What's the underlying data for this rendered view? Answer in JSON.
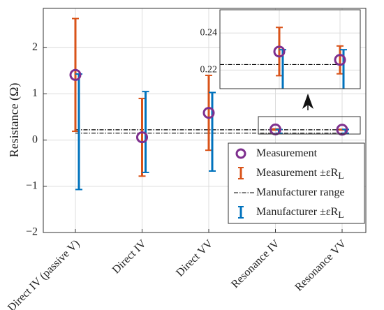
{
  "chart_data": {
    "type": "errorbar",
    "ylabel": "Resistance (Ω)",
    "categories": [
      "Direct IV (passive V)",
      "Direct IV",
      "Direct VV",
      "Resonance IV",
      "Resonance VV"
    ],
    "ylim": [
      -2,
      2.85
    ],
    "yticks": [
      {
        "value": -2,
        "label": "−2"
      },
      {
        "value": -1,
        "label": "−1"
      },
      0,
      1,
      2
    ],
    "grid": true,
    "series": [
      {
        "name": "Measurement",
        "color": "#7e2f8e",
        "values": [
          1.41,
          0.06,
          0.59,
          0.23,
          0.2255
        ]
      },
      {
        "name": "Measurement ±εR",
        "name_sub": "L",
        "color": "#d95319",
        "errors": [
          1.22,
          0.84,
          0.81,
          0.013,
          0.0075
        ]
      },
      {
        "name": "Manufacturer range",
        "color": "#000000",
        "range": [
          0.15,
          0.223
        ]
      },
      {
        "name": "Manufacturer ±εR",
        "name_sub": "L",
        "color": "#0072bd",
        "values": [
          0.18,
          0.175,
          0.18,
          0.19,
          0.19
        ],
        "errors": [
          1.25,
          0.875,
          0.85,
          0.041,
          0.041
        ]
      }
    ],
    "inset": {
      "ylim": [
        0.21,
        0.2525
      ],
      "yticks": [
        0.22,
        0.24
      ]
    }
  }
}
